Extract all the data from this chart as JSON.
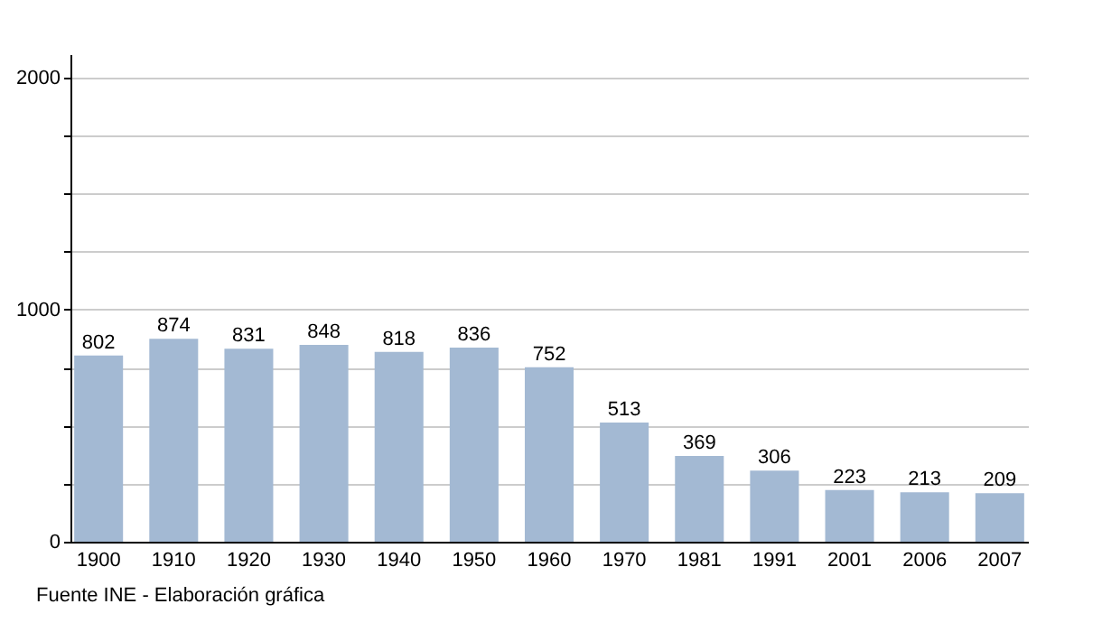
{
  "chart_data": {
    "type": "bar",
    "categories": [
      "1900",
      "1910",
      "1920",
      "1930",
      "1940",
      "1950",
      "1960",
      "1970",
      "1981",
      "1991",
      "2001",
      "2006",
      "2007"
    ],
    "values": [
      802,
      874,
      831,
      848,
      818,
      836,
      752,
      513,
      369,
      306,
      223,
      213,
      209
    ],
    "color": "#a3b9d3",
    "ylim": [
      0,
      2100
    ],
    "yticks": [
      0,
      {
        "value": 250,
        "label": null
      },
      {
        "value": 500,
        "label": null
      },
      {
        "value": 750,
        "label": null
      },
      1000,
      {
        "value": 1250,
        "label": null
      },
      {
        "value": 1500,
        "label": null
      },
      {
        "value": 1750,
        "label": null
      },
      2000
    ],
    "grid": "y",
    "data_labels": true,
    "annotations": [
      "Fuente INE - Elaboración gráfica"
    ]
  }
}
